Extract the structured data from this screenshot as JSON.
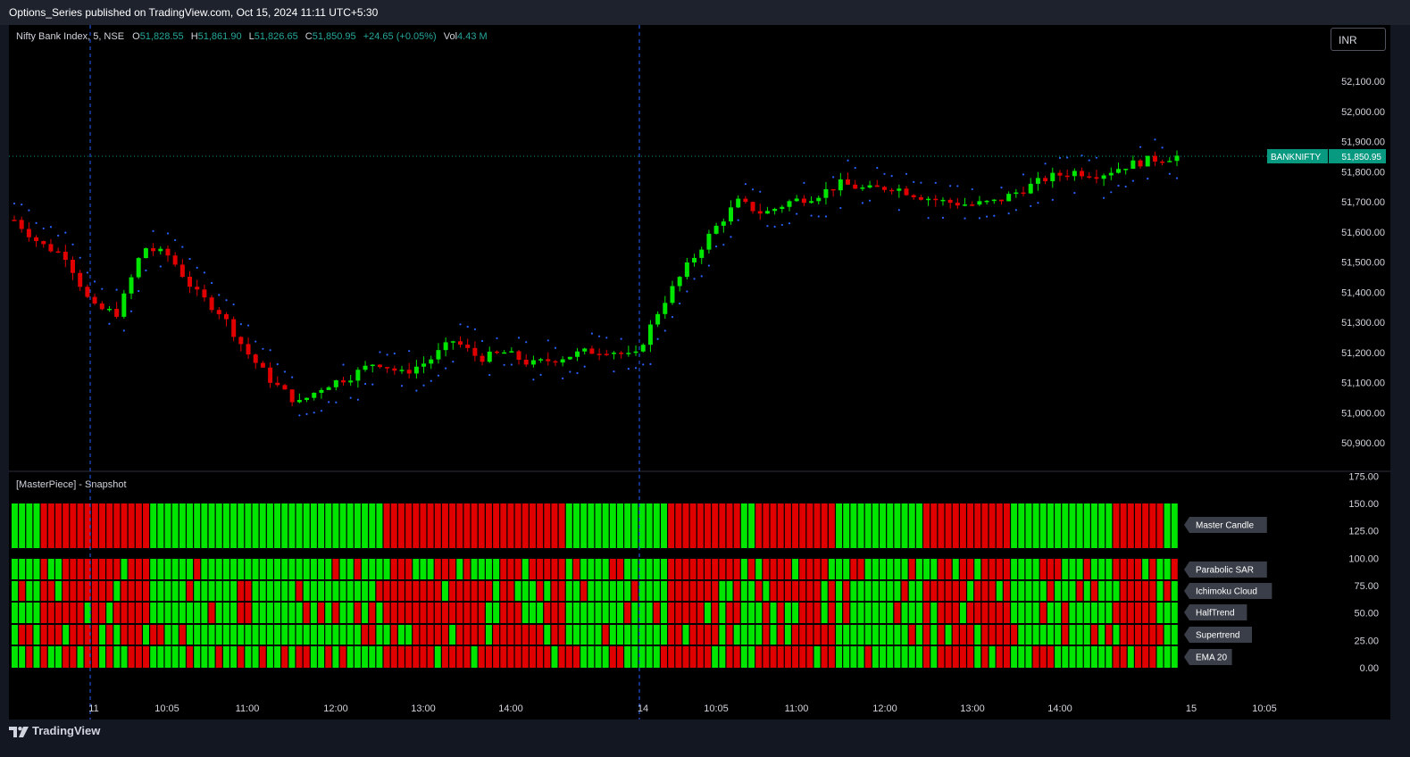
{
  "header": {
    "publish_text": "Options_Series published on TradingView.com, Oct 15, 2024 11:11 UTC+5:30"
  },
  "legend": {
    "symbol": "Nifty Bank Index, 5, NSE",
    "open_label": "O",
    "open": "51,828.55",
    "high_label": "H",
    "high": "51,861.90",
    "low_label": "L",
    "low": "51,826.65",
    "close_label": "C",
    "close": "51,850.95",
    "change": "+24.65 (+0.05%)",
    "vol_label": "Vol",
    "vol": "4.43 M"
  },
  "currency_button": "INR",
  "price_tag": {
    "symbol": "BANKNIFTY",
    "price": "51,850.95"
  },
  "price_axis": [
    "52,100.00",
    "52,000.00",
    "51,900.00",
    "51,800.00",
    "51,700.00",
    "51,600.00",
    "51,500.00",
    "51,400.00",
    "51,300.00",
    "51,200.00",
    "51,100.00",
    "51,000.00",
    "50,900.00"
  ],
  "indicator_axis": [
    "175.00",
    "150.00",
    "125.00",
    "100.00",
    "75.00",
    "50.00",
    "25.00",
    "0.00"
  ],
  "time_axis": [
    "11",
    "10:05",
    "11:00",
    "12:00",
    "13:00",
    "14:00",
    "14",
    "10:05",
    "11:00",
    "12:00",
    "13:00",
    "14:00",
    "15",
    "10:05"
  ],
  "indicator": {
    "title": "[MasterPiece] - Snapshot",
    "rows": [
      "Master Candle",
      "Parabolic SAR",
      "Ichimoku Cloud",
      "HalfTrend",
      "Supertrend",
      "EMA 20"
    ]
  },
  "colors": {
    "up": "#00e600",
    "down": "#e00000",
    "sar": "#2962ff",
    "tag_bg": "#089981",
    "label_bg": "#3a3e48"
  },
  "footer": {
    "brand": "TradingView"
  },
  "chart_data": {
    "type": "candlestick",
    "interval": "5",
    "sessions": [
      "Oct 11",
      "Oct 14"
    ],
    "ylim": [
      50850,
      52150
    ],
    "ohlc_approx_close_path": [
      51640,
      51560,
      51520,
      51350,
      51330,
      51550,
      51520,
      51400,
      51330,
      51200,
      51100,
      51030,
      51090,
      51120,
      51170,
      51130,
      51170,
      51240,
      51180,
      51200,
      51160,
      51180,
      51200,
      51210,
      51180,
      51350,
      51480,
      51600,
      51700,
      51660,
      51700,
      51720,
      51760,
      51740,
      51750,
      51720,
      51700,
      51690,
      51700,
      51740,
      51780,
      51800,
      51790,
      51820,
      51840,
      51850.95
    ],
    "last_close": 51850.95
  }
}
